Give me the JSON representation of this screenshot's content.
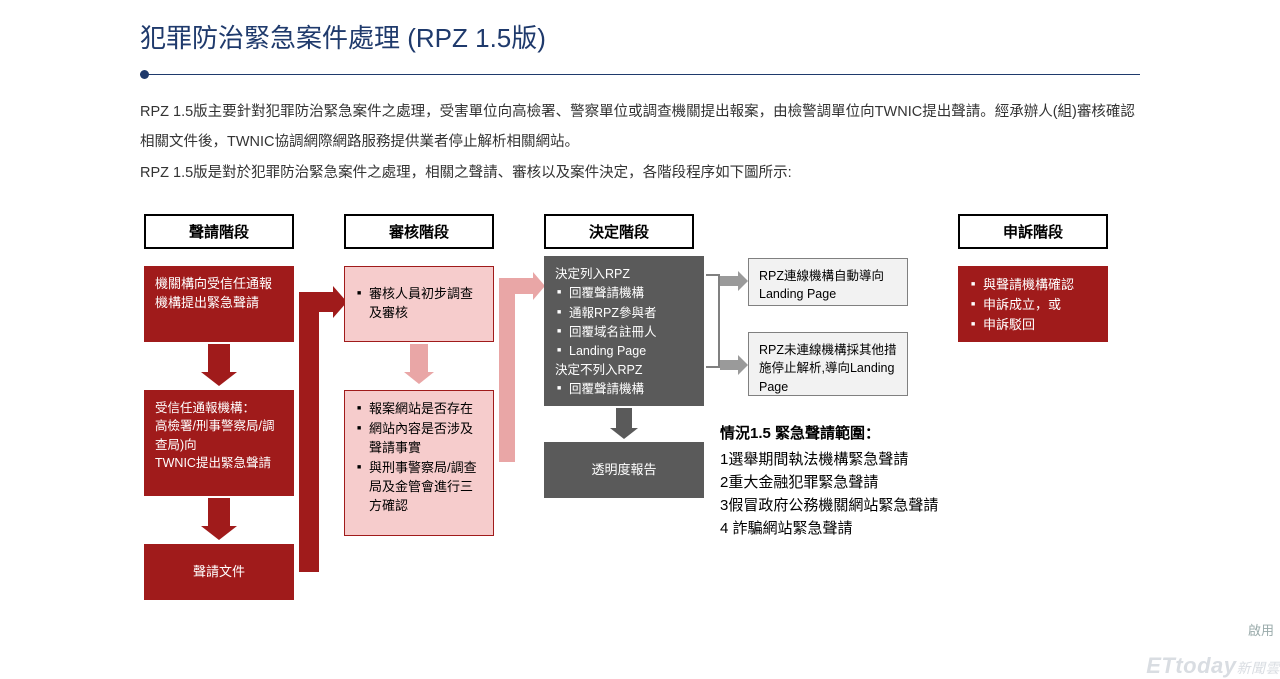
{
  "title": "犯罪防治緊急案件處理 (RPZ 1.5版)",
  "description": "RPZ 1.5版主要針對犯罪防治緊急案件之處理，受害單位向高檢署、警察單位或調查機關提出報案，由檢警調單位向TWNIC提出聲請。經承辦人(組)審核確認相關文件後，TWNIC協調網際網路服務提供業者停止解析相關網站。\nRPZ 1.5版是對於犯罪防治緊急案件之處理，相關之聲請、審核以及案件決定，各階段程序如下圖所示:",
  "colors": {
    "title": "#1f3a6c",
    "red": "#a01b1b",
    "pink_fill": "#f6cccc",
    "pink_arrow": "#e9a6a6",
    "dark": "#5a5a5a",
    "grey_fill": "#f2f2f2",
    "grey_border": "#808080"
  },
  "headers": {
    "c1": "聲請階段",
    "c2": "審核階段",
    "c3": "決定階段",
    "c4": "申訴階段"
  },
  "col1": {
    "b1": "機關構向受信任通報機構提出緊急聲請",
    "b2_l1": "受信任通報機構：",
    "b2_l2": "高檢署/刑事警察局/調查局)向",
    "b2_l3": "TWNIC提出緊急聲請",
    "b3": "聲請文件"
  },
  "col2": {
    "b1": "審核人員初步調查及審核",
    "b2_i1": "報案網站是否存在",
    "b2_i2": "網站內容是否涉及聲請事實",
    "b2_i3": "與刑事警察局/調查局及金管會進行三方確認"
  },
  "col3": {
    "t1": "決定列入RPZ",
    "i1": "回覆聲請機構",
    "i2": "通報RPZ參與者",
    "i3": "回覆域名註冊人",
    "i4": "Landing Page",
    "t2": "決定不列入RPZ",
    "i5": "回覆聲請機構",
    "b2": "透明度報告"
  },
  "col3r": {
    "g1": "RPZ連線機構自動導向 Landing Page",
    "g2": "RPZ未連線機構採其他措施停止解析,導向Landing Page"
  },
  "col4": {
    "i1": "與聲請機構確認",
    "i2": "申訴成立，或",
    "i3": "申訴駁回"
  },
  "scope": {
    "title": "情況1.5 緊急聲請範圍：",
    "l1": "1選舉期間執法機構緊急聲請",
    "l2": "2重大金融犯罪緊急聲請",
    "l3": "3假冒政府公務機關網站緊急聲請",
    "l4": "4 詐騙網站緊急聲請"
  },
  "watermark": {
    "r": "啟用",
    "b1": "ETtoday",
    "b2": "新聞雲"
  }
}
